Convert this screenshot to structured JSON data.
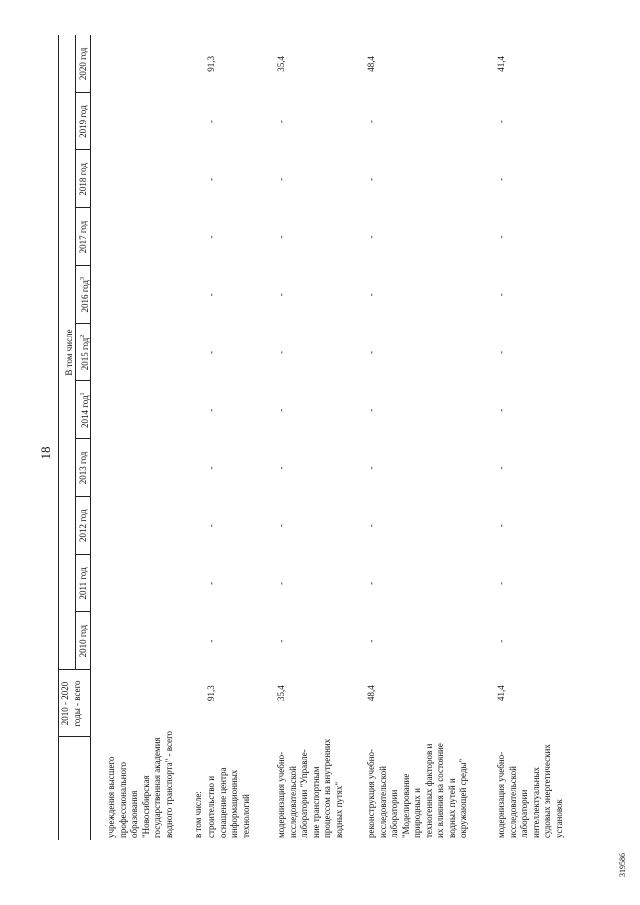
{
  "header": {
    "page_number": "18"
  },
  "table": {
    "total_header": [
      "2010 - 2020",
      "годы - всего"
    ],
    "group_header": "В том числе",
    "years": [
      {
        "text": "2010 год"
      },
      {
        "text": "2011 год"
      },
      {
        "text": "2012 год"
      },
      {
        "text": "2013 год"
      },
      {
        "text": "2014 год",
        "note": "1"
      },
      {
        "text": "2015 год",
        "note": "2"
      },
      {
        "text": "2016 год",
        "note": "3"
      },
      {
        "text": "2017 год"
      },
      {
        "text": "2018 год"
      },
      {
        "text": "2019 год"
      },
      {
        "text": "2020 год"
      }
    ],
    "rows": [
      {
        "label": [
          "учреждения высшего",
          "профессионального",
          "образования",
          "\"Новосибирская",
          "государственная академия",
          "водного транспорта\" - всего"
        ]
      },
      {
        "label": [
          "в том числе:"
        ]
      },
      {
        "label": [
          "строительство и",
          "оснащение центра",
          "информационных",
          "технологий"
        ],
        "total": "91,3",
        "years": [
          "-",
          "-",
          "-",
          "-",
          "-",
          "-",
          "-",
          "-",
          "-",
          "-",
          "91,3"
        ]
      },
      {
        "label": [
          "модернизация учебно-",
          "исследовательской",
          "лаборатории \"Управле-",
          "ние транспортным",
          "процессом на внутренних",
          "водных путях\""
        ],
        "total": "35,4",
        "years": [
          "-",
          "-",
          "-",
          "-",
          "-",
          "-",
          "-",
          "-",
          "-",
          "-",
          "35,4"
        ]
      },
      {
        "label": [
          "реконструкция учебно-",
          "исследовательской",
          "лаборатории",
          "\"Моделирование",
          "природных и",
          "техногенных факторов и",
          "их влияния на состояние",
          "водных путей и",
          "окружающей среды\""
        ],
        "total": "48,4",
        "years": [
          "-",
          "-",
          "-",
          "-",
          "-",
          "-",
          "-",
          "-",
          "-",
          "-",
          "48,4"
        ]
      },
      {
        "label": [
          "модернизация учебно-",
          "исследовательской",
          "лаборатории",
          "интеллектуальных",
          "судовых энергетических",
          "установок"
        ],
        "total": "41,4",
        "years": [
          "-",
          "-",
          "-",
          "-",
          "-",
          "-",
          "-",
          "-",
          "-",
          "-",
          "41,4"
        ]
      }
    ]
  },
  "footer": {
    "code": "319586"
  }
}
